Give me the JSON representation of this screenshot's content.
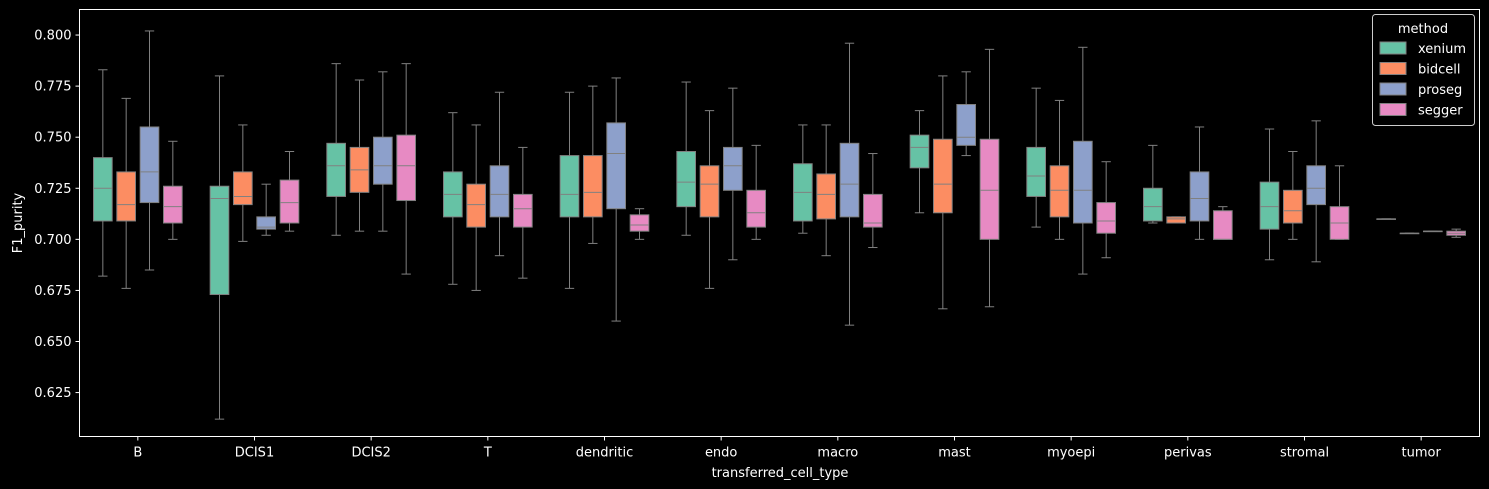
{
  "chart_data": {
    "type": "boxplot",
    "title": "",
    "xlabel": "transferred_cell_type",
    "ylabel": "F1_purity",
    "ylim": [
      0.6035,
      0.8125
    ],
    "yticks": [
      0.625,
      0.65,
      0.675,
      0.7,
      0.725,
      0.75,
      0.775,
      0.8
    ],
    "ytick_labels": [
      "0.625",
      "0.650",
      "0.675",
      "0.700",
      "0.725",
      "0.750",
      "0.775",
      "0.800"
    ],
    "categories": [
      "B",
      "DCIS1",
      "DCIS2",
      "T",
      "dendritic",
      "endo",
      "macro",
      "mast",
      "myoepi",
      "perivas",
      "stromal",
      "tumor"
    ],
    "legend": {
      "title": "method",
      "position": "top-right"
    },
    "series": [
      {
        "name": "xenium",
        "color": "#66c2a5",
        "boxes": [
          {
            "whislo": 0.682,
            "q1": 0.709,
            "med": 0.725,
            "q3": 0.74,
            "whishi": 0.783
          },
          {
            "whislo": 0.612,
            "q1": 0.673,
            "med": 0.72,
            "q3": 0.726,
            "whishi": 0.78
          },
          {
            "whislo": 0.702,
            "q1": 0.721,
            "med": 0.736,
            "q3": 0.747,
            "whishi": 0.786
          },
          {
            "whislo": 0.678,
            "q1": 0.711,
            "med": 0.722,
            "q3": 0.733,
            "whishi": 0.762
          },
          {
            "whislo": 0.676,
            "q1": 0.711,
            "med": 0.722,
            "q3": 0.741,
            "whishi": 0.772
          },
          {
            "whislo": 0.702,
            "q1": 0.716,
            "med": 0.728,
            "q3": 0.743,
            "whishi": 0.777
          },
          {
            "whislo": 0.703,
            "q1": 0.709,
            "med": 0.723,
            "q3": 0.737,
            "whishi": 0.756
          },
          {
            "whislo": 0.713,
            "q1": 0.735,
            "med": 0.745,
            "q3": 0.751,
            "whishi": 0.763
          },
          {
            "whislo": 0.706,
            "q1": 0.721,
            "med": 0.731,
            "q3": 0.745,
            "whishi": 0.774
          },
          {
            "whislo": 0.708,
            "q1": 0.709,
            "med": 0.716,
            "q3": 0.725,
            "whishi": 0.746
          },
          {
            "whislo": 0.69,
            "q1": 0.705,
            "med": 0.716,
            "q3": 0.728,
            "whishi": 0.754
          },
          {
            "whislo": 0.71,
            "q1": 0.71,
            "med": 0.71,
            "q3": 0.71,
            "whishi": 0.71
          }
        ]
      },
      {
        "name": "bidcell",
        "color": "#fc8d62",
        "boxes": [
          {
            "whislo": 0.676,
            "q1": 0.709,
            "med": 0.717,
            "q3": 0.733,
            "whishi": 0.769
          },
          {
            "whislo": 0.699,
            "q1": 0.717,
            "med": 0.721,
            "q3": 0.733,
            "whishi": 0.756
          },
          {
            "whislo": 0.704,
            "q1": 0.723,
            "med": 0.734,
            "q3": 0.745,
            "whishi": 0.778
          },
          {
            "whislo": 0.675,
            "q1": 0.706,
            "med": 0.717,
            "q3": 0.727,
            "whishi": 0.756
          },
          {
            "whislo": 0.698,
            "q1": 0.711,
            "med": 0.723,
            "q3": 0.741,
            "whishi": 0.775
          },
          {
            "whislo": 0.676,
            "q1": 0.711,
            "med": 0.727,
            "q3": 0.736,
            "whishi": 0.763
          },
          {
            "whislo": 0.692,
            "q1": 0.71,
            "med": 0.722,
            "q3": 0.732,
            "whishi": 0.756
          },
          {
            "whislo": 0.666,
            "q1": 0.713,
            "med": 0.727,
            "q3": 0.749,
            "whishi": 0.78
          },
          {
            "whislo": 0.7,
            "q1": 0.711,
            "med": 0.724,
            "q3": 0.736,
            "whishi": 0.768
          },
          {
            "whislo": 0.708,
            "q1": 0.708,
            "med": 0.71,
            "q3": 0.711,
            "whishi": 0.711
          },
          {
            "whislo": 0.7,
            "q1": 0.708,
            "med": 0.714,
            "q3": 0.724,
            "whishi": 0.743
          },
          {
            "whislo": 0.703,
            "q1": 0.703,
            "med": 0.703,
            "q3": 0.703,
            "whishi": 0.703
          }
        ]
      },
      {
        "name": "proseg",
        "color": "#8da0cb",
        "boxes": [
          {
            "whislo": 0.685,
            "q1": 0.718,
            "med": 0.733,
            "q3": 0.755,
            "whishi": 0.802
          },
          {
            "whislo": 0.702,
            "q1": 0.705,
            "med": 0.706,
            "q3": 0.711,
            "whishi": 0.727
          },
          {
            "whislo": 0.704,
            "q1": 0.727,
            "med": 0.736,
            "q3": 0.75,
            "whishi": 0.782
          },
          {
            "whislo": 0.692,
            "q1": 0.711,
            "med": 0.722,
            "q3": 0.736,
            "whishi": 0.772
          },
          {
            "whislo": 0.66,
            "q1": 0.715,
            "med": 0.742,
            "q3": 0.757,
            "whishi": 0.779
          },
          {
            "whislo": 0.69,
            "q1": 0.724,
            "med": 0.736,
            "q3": 0.745,
            "whishi": 0.774
          },
          {
            "whislo": 0.658,
            "q1": 0.711,
            "med": 0.727,
            "q3": 0.747,
            "whishi": 0.796
          },
          {
            "whislo": 0.741,
            "q1": 0.746,
            "med": 0.75,
            "q3": 0.766,
            "whishi": 0.782
          },
          {
            "whislo": 0.683,
            "q1": 0.708,
            "med": 0.724,
            "q3": 0.748,
            "whishi": 0.794
          },
          {
            "whislo": 0.7,
            "q1": 0.709,
            "med": 0.72,
            "q3": 0.733,
            "whishi": 0.755
          },
          {
            "whislo": 0.689,
            "q1": 0.717,
            "med": 0.725,
            "q3": 0.736,
            "whishi": 0.758
          },
          {
            "whislo": 0.704,
            "q1": 0.704,
            "med": 0.704,
            "q3": 0.704,
            "whishi": 0.704
          }
        ]
      },
      {
        "name": "segger",
        "color": "#e78ac3",
        "boxes": [
          {
            "whislo": 0.7,
            "q1": 0.708,
            "med": 0.716,
            "q3": 0.726,
            "whishi": 0.748
          },
          {
            "whislo": 0.704,
            "q1": 0.708,
            "med": 0.718,
            "q3": 0.729,
            "whishi": 0.743
          },
          {
            "whislo": 0.683,
            "q1": 0.719,
            "med": 0.736,
            "q3": 0.751,
            "whishi": 0.786
          },
          {
            "whislo": 0.681,
            "q1": 0.706,
            "med": 0.715,
            "q3": 0.722,
            "whishi": 0.745
          },
          {
            "whislo": 0.7,
            "q1": 0.704,
            "med": 0.707,
            "q3": 0.712,
            "whishi": 0.715
          },
          {
            "whislo": 0.7,
            "q1": 0.706,
            "med": 0.713,
            "q3": 0.724,
            "whishi": 0.746
          },
          {
            "whislo": 0.696,
            "q1": 0.706,
            "med": 0.708,
            "q3": 0.722,
            "whishi": 0.742
          },
          {
            "whislo": 0.667,
            "q1": 0.7,
            "med": 0.724,
            "q3": 0.749,
            "whishi": 0.793
          },
          {
            "whislo": 0.691,
            "q1": 0.703,
            "med": 0.709,
            "q3": 0.718,
            "whishi": 0.738
          },
          {
            "whislo": 0.7,
            "q1": 0.7,
            "med": 0.7,
            "q3": 0.714,
            "whishi": 0.716
          },
          {
            "whislo": 0.7,
            "q1": 0.7,
            "med": 0.708,
            "q3": 0.716,
            "whishi": 0.736
          },
          {
            "whislo": 0.701,
            "q1": 0.702,
            "med": 0.703,
            "q3": 0.704,
            "whishi": 0.705
          }
        ]
      }
    ]
  }
}
